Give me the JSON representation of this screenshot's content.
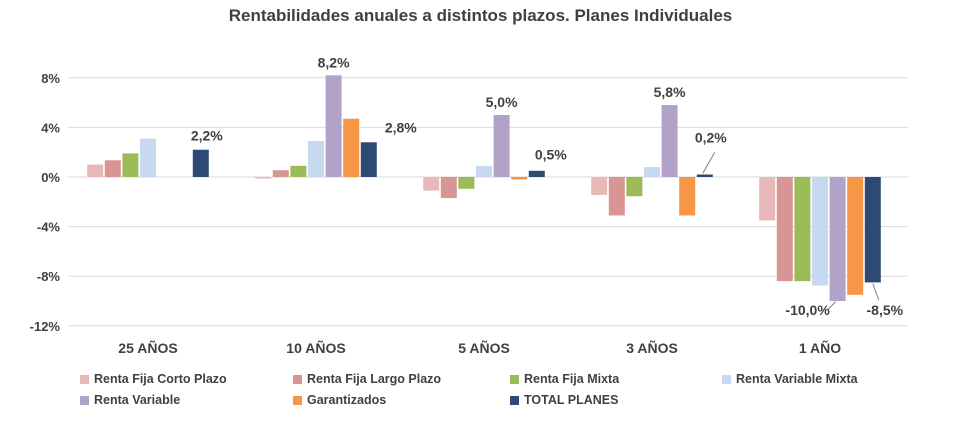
{
  "chart_data": {
    "type": "bar",
    "title": "Rentabilidades anuales a distintos plazos. Planes Individuales",
    "categories": [
      "25 AÑOS",
      "10 AÑOS",
      "5 AÑOS",
      "3 AÑOS",
      "1 AÑO"
    ],
    "ylim": [
      -12,
      10
    ],
    "yticks": [
      -12,
      -8,
      -4,
      0,
      4,
      8
    ],
    "ytick_labels": [
      "-12%",
      "-8%",
      "-4%",
      "0%",
      "4%",
      "8%"
    ],
    "grid": true,
    "legend_position": "bottom",
    "series": [
      {
        "name": "Renta Fija Corto Plazo",
        "color": "#E6B9B8",
        "values": [
          1.0,
          -0.1,
          -1.1,
          -1.45,
          -3.5
        ]
      },
      {
        "name": "Renta Fija Largo Plazo",
        "color": "#D99594",
        "values": [
          1.35,
          0.55,
          -1.7,
          -3.1,
          -8.4
        ]
      },
      {
        "name": "Renta Fija Mixta",
        "color": "#9BBB59",
        "values": [
          1.9,
          0.9,
          -0.95,
          -1.55,
          -8.4
        ]
      },
      {
        "name": "Renta Variable Mixta",
        "color": "#C6D9F1",
        "values": [
          3.1,
          2.9,
          0.9,
          0.8,
          -8.75
        ]
      },
      {
        "name": "Renta Variable",
        "color": "#B2A2C7",
        "values": [
          null,
          8.2,
          5.0,
          5.8,
          -10.0
        ]
      },
      {
        "name": "Garantizados",
        "color": "#F79646",
        "values": [
          null,
          4.7,
          -0.2,
          -3.1,
          -9.5
        ]
      },
      {
        "name": "TOTAL PLANES",
        "color": "#2C4A74",
        "values": [
          2.2,
          2.8,
          0.5,
          0.2,
          -8.5
        ]
      }
    ],
    "data_labels": [
      {
        "series": 6,
        "category": 0,
        "text": "2,2%"
      },
      {
        "series": 4,
        "category": 1,
        "text": "8,2%"
      },
      {
        "series": 6,
        "category": 1,
        "text": "2,8%"
      },
      {
        "series": 4,
        "category": 2,
        "text": "5,0%"
      },
      {
        "series": 6,
        "category": 2,
        "text": "0,5%"
      },
      {
        "series": 4,
        "category": 3,
        "text": "5,8%"
      },
      {
        "series": 6,
        "category": 3,
        "text": "0,2%"
      },
      {
        "series": 4,
        "category": 4,
        "text": "-10,0%"
      },
      {
        "series": 6,
        "category": 4,
        "text": "-8,5%"
      }
    ]
  }
}
